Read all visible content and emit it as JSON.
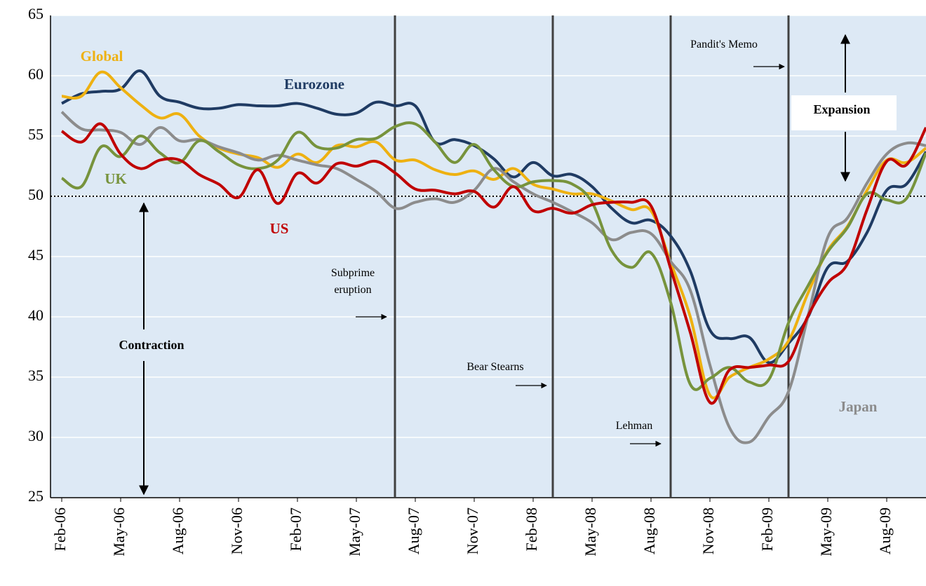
{
  "chart_data": {
    "type": "line",
    "categories": [
      "Feb-06",
      null,
      null,
      "May-06",
      null,
      null,
      "Aug-06",
      null,
      null,
      "Nov-06",
      null,
      null,
      "Feb-07",
      null,
      null,
      "May-07",
      null,
      null,
      "Aug-07",
      null,
      null,
      "Nov-07",
      null,
      null,
      "Feb-08",
      null,
      null,
      "May-08",
      null,
      null,
      "Aug-08",
      null,
      null,
      "Nov-08",
      null,
      null,
      "Feb-09",
      null,
      null,
      "May-09",
      null,
      null,
      "Aug-09",
      null,
      null
    ],
    "series": [
      {
        "name": "Eurozone",
        "color": "#1f3b63",
        "values": [
          57.7,
          58.5,
          58.7,
          58.9,
          60.4,
          58.3,
          57.8,
          57.3,
          57.3,
          57.6,
          57.5,
          57.5,
          57.7,
          57.3,
          56.8,
          56.9,
          57.8,
          57.5,
          57.5,
          54.5,
          54.7,
          54.2,
          53.1,
          51.6,
          52.8,
          51.7,
          51.8,
          50.8,
          49,
          47.8,
          48,
          46.7,
          43.8,
          38.9,
          38.2,
          38.3,
          36.2,
          37.8,
          40,
          44.1,
          44.6,
          47,
          50.5,
          51,
          53.7
        ]
      },
      {
        "name": "Global",
        "color": "#eeb111",
        "values": [
          58.3,
          58.3,
          60.3,
          59,
          57.6,
          56.5,
          56.8,
          55,
          54,
          53.5,
          53.2,
          52.4,
          53.5,
          52.8,
          54.2,
          54.1,
          54.5,
          53,
          53,
          52.2,
          51.8,
          52.1,
          51.4,
          52.3,
          51,
          50.6,
          50.2,
          50.2,
          49.6,
          48.9,
          48.8,
          44.5,
          40,
          33.5,
          35,
          35.8,
          36.5,
          38,
          42,
          45.5,
          47.5,
          50.5,
          53,
          52.8,
          54
        ]
      },
      {
        "name": "Japan",
        "color": "#8c8c8c",
        "values": [
          57,
          55.6,
          55.5,
          55.3,
          54.3,
          55.7,
          54.6,
          54.7,
          54.1,
          53.6,
          53,
          53.4,
          53,
          52.6,
          52.3,
          51.4,
          50.4,
          49,
          49.5,
          49.8,
          49.5,
          50.5,
          52.3,
          51.2,
          50.2,
          49.5,
          48.7,
          47.8,
          46.4,
          47,
          46.9,
          44.6,
          42.2,
          36,
          30.8,
          29.6,
          31.7,
          33.8,
          40.1,
          46.6,
          48.2,
          51.1,
          53.5,
          54.4,
          54.2
        ]
      },
      {
        "name": "UK",
        "color": "#77933c",
        "values": [
          51.5,
          50.8,
          54.1,
          53.3,
          55,
          53.6,
          52.8,
          54.6,
          53.7,
          52.6,
          52.3,
          53,
          55.3,
          54.1,
          54,
          54.7,
          54.8,
          55.8,
          56,
          54.5,
          52.8,
          54.3,
          52.2,
          50.8,
          51.2,
          51.3,
          51,
          49.5,
          45.5,
          44.1,
          45.3,
          41.2,
          34.4,
          34.9,
          35.8,
          34.6,
          34.8,
          39.5,
          42.6,
          45.4,
          47.4,
          50.2,
          49.7,
          49.8,
          53.6
        ]
      },
      {
        "name": "US",
        "color": "#c00000",
        "values": [
          55.4,
          54.5,
          56,
          53.5,
          52.3,
          53,
          53,
          51.8,
          51,
          49.9,
          52.2,
          49.4,
          51.9,
          51.1,
          52.7,
          52.5,
          52.9,
          51.9,
          50.6,
          50.5,
          50.2,
          50.4,
          49.1,
          50.8,
          48.8,
          49,
          48.6,
          49.3,
          49.5,
          49.5,
          49.2,
          44,
          38.7,
          32.9,
          35.6,
          35.8,
          36,
          36.3,
          40.1,
          42.8,
          44.4,
          48.9,
          52.9,
          52.6,
          55.7
        ]
      }
    ],
    "ylim": [
      25,
      65
    ],
    "yticks": [
      25,
      30,
      35,
      40,
      45,
      50,
      55,
      60,
      65
    ],
    "grid": true,
    "reference_line": 50,
    "events": [
      [
        "Subprime",
        "eruption"
      ],
      [
        "Bear Stearns"
      ],
      [
        "Lehman"
      ],
      [
        "Pandit's Memo"
      ]
    ],
    "regions": {
      "upper": "Expansion",
      "lower": "Contraction"
    }
  }
}
